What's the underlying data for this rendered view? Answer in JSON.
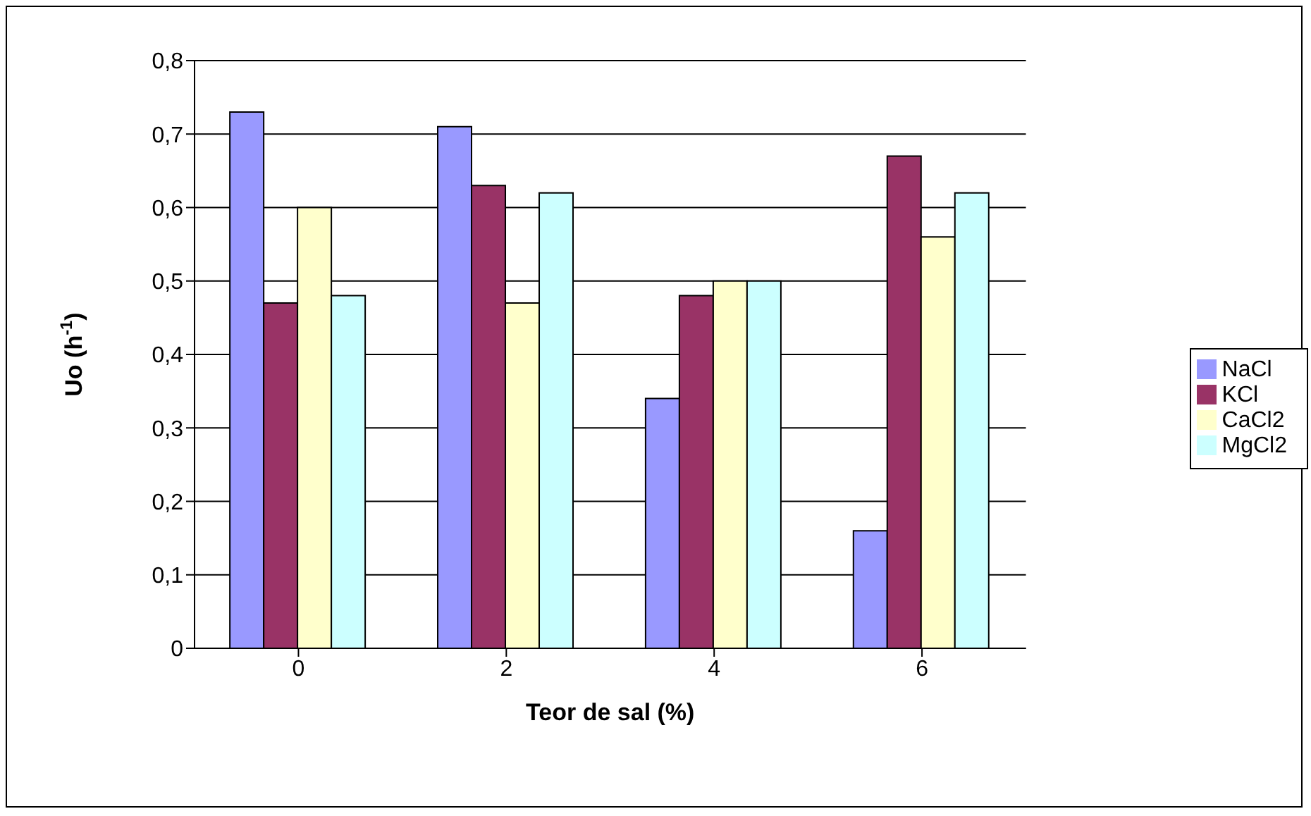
{
  "chart_data": {
    "type": "bar",
    "xlabel": "Teor de sal (%)",
    "ylabel": "Uo (h$^{-1}$)",
    "categories": [
      "0",
      "2",
      "4",
      "6"
    ],
    "series": [
      {
        "name": "NaCl",
        "color": "#9999ff",
        "values": [
          0.73,
          0.71,
          0.34,
          0.16
        ]
      },
      {
        "name": "KCl",
        "color": "#993366",
        "values": [
          0.47,
          0.63,
          0.48,
          0.67
        ]
      },
      {
        "name": "CaCl2",
        "color": "#ffffcc",
        "values": [
          0.6,
          0.47,
          0.5,
          0.56
        ]
      },
      {
        "name": "MgCl2",
        "color": "#ccffff",
        "values": [
          0.48,
          0.62,
          0.5,
          0.62
        ]
      }
    ],
    "ylim": [
      0,
      0.8
    ],
    "yticks": [
      0,
      {
        "value": 0.1,
        "label": "0,1"
      },
      {
        "value": 0.2,
        "label": "0,2"
      },
      {
        "value": 0.3,
        "label": "0,3"
      },
      {
        "value": 0.4,
        "label": "0,4"
      },
      {
        "value": 0.5,
        "label": "0,5"
      },
      {
        "value": 0.6,
        "label": "0,6"
      },
      {
        "value": 0.7,
        "label": "0,7"
      },
      {
        "value": 0.8,
        "label": "0,8"
      }
    ],
    "grid": "y",
    "legend": "right"
  }
}
